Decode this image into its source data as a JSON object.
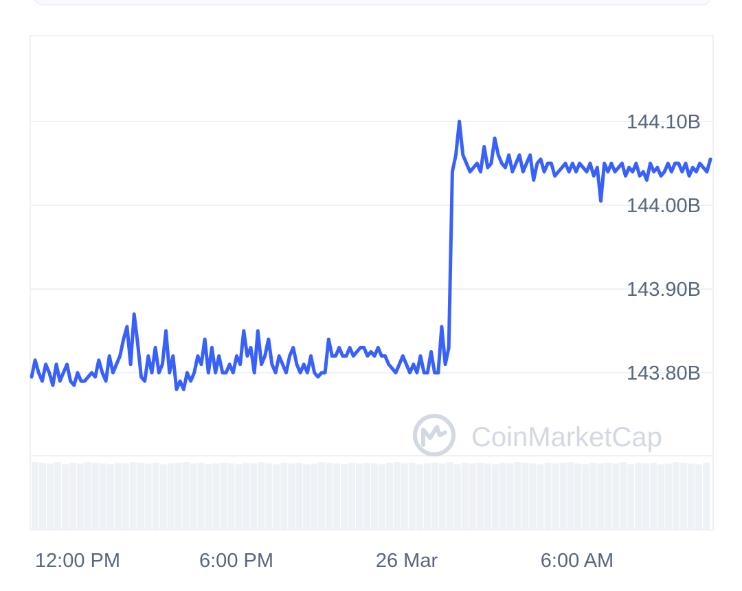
{
  "chart_data": {
    "type": "line",
    "title": "",
    "xlabel": "",
    "ylabel": "",
    "x_ticks": [
      "12:00 PM",
      "6:00 PM",
      "26 Mar",
      "6:00 AM"
    ],
    "y_ticks": [
      "143.80B",
      "143.90B",
      "144.00B",
      "144.10B"
    ],
    "y_tick_values": [
      143.8,
      143.9,
      144.0,
      144.1
    ],
    "ylim": [
      143.7,
      144.2
    ],
    "series": [
      {
        "color": "#3861fb",
        "values": [
          143.795,
          143.815,
          143.8,
          143.79,
          143.81,
          143.8,
          143.785,
          143.81,
          143.79,
          143.8,
          143.81,
          143.79,
          143.785,
          143.8,
          143.79,
          143.79,
          143.795,
          143.8,
          143.795,
          143.815,
          143.8,
          143.79,
          143.82,
          143.8,
          143.81,
          143.82,
          143.84,
          143.855,
          143.81,
          143.87,
          143.835,
          143.795,
          143.79,
          143.82,
          143.8,
          143.83,
          143.8,
          143.81,
          143.85,
          143.8,
          143.82,
          143.78,
          143.79,
          143.78,
          143.8,
          143.79,
          143.8,
          143.82,
          143.81,
          143.84,
          143.8,
          143.83,
          143.8,
          143.82,
          143.8,
          143.8,
          143.81,
          143.8,
          143.82,
          143.81,
          143.85,
          143.82,
          143.83,
          143.8,
          143.85,
          143.81,
          143.82,
          143.84,
          143.81,
          143.8,
          143.82,
          143.81,
          143.8,
          143.82,
          143.83,
          143.81,
          143.8,
          143.81,
          143.8,
          143.82,
          143.8,
          143.795,
          143.8,
          143.8,
          143.84,
          143.82,
          143.82,
          143.83,
          143.82,
          143.82,
          143.83,
          143.82,
          143.825,
          143.83,
          143.83,
          143.82,
          143.825,
          143.82,
          143.83,
          143.82,
          143.82,
          143.81,
          143.805,
          143.8,
          143.81,
          143.82,
          143.81,
          143.8,
          143.81,
          143.8,
          143.82,
          143.8,
          143.8,
          143.825,
          143.8,
          143.8,
          143.855,
          143.81,
          143.83,
          144.04,
          144.06,
          144.1,
          144.06,
          144.05,
          144.04,
          144.045,
          144.05,
          144.04,
          144.07,
          144.045,
          144.05,
          144.08,
          144.06,
          144.05,
          144.045,
          144.06,
          144.04,
          144.05,
          144.06,
          144.04,
          144.05,
          144.06,
          144.03,
          144.05,
          144.055,
          144.04,
          144.05,
          144.05,
          144.035,
          144.04,
          144.045,
          144.05,
          144.04,
          144.05,
          144.04,
          144.05,
          144.045,
          144.04,
          144.05,
          144.035,
          144.045,
          144.005,
          144.05,
          144.04,
          144.05,
          144.04,
          144.045,
          144.05,
          144.035,
          144.045,
          144.04,
          144.05,
          144.035,
          144.04,
          144.03,
          144.05,
          144.04,
          144.045,
          144.035,
          144.04,
          144.05,
          144.04,
          144.05,
          144.05,
          144.04,
          144.05,
          144.035,
          144.045,
          144.04,
          144.05,
          144.045,
          144.04,
          144.055
        ]
      }
    ],
    "volume_bars": [
      0.95,
      0.94,
      0.93,
      0.95,
      0.92,
      0.94,
      0.93,
      0.95,
      0.94,
      0.93,
      0.92,
      0.94,
      0.93,
      0.95,
      0.94,
      0.93,
      0.94,
      0.92,
      0.93,
      0.94,
      0.95,
      0.93,
      0.94,
      0.92,
      0.93,
      0.94,
      0.93,
      0.92,
      0.94,
      0.93,
      0.95,
      0.93,
      0.92,
      0.94,
      0.93,
      0.94,
      0.92,
      0.93,
      0.95,
      0.94,
      0.93,
      0.92,
      0.94,
      0.93,
      0.94,
      0.93,
      0.92,
      0.94,
      0.95,
      0.93,
      0.94,
      0.92,
      0.93,
      0.94,
      0.93,
      0.95,
      0.92,
      0.94,
      0.93,
      0.94,
      0.93,
      0.92,
      0.94,
      0.93,
      0.95,
      0.94,
      0.93,
      0.92,
      0.94,
      0.93,
      0.94,
      0.95,
      0.93,
      0.92,
      0.94,
      0.93,
      0.94,
      0.93,
      0.95,
      0.92,
      0.94,
      0.93,
      0.94,
      0.92,
      0.93,
      0.95,
      0.94,
      0.93,
      0.92,
      0.94
    ],
    "watermark": "CoinMarketCap",
    "grid": true,
    "legend": "none"
  }
}
